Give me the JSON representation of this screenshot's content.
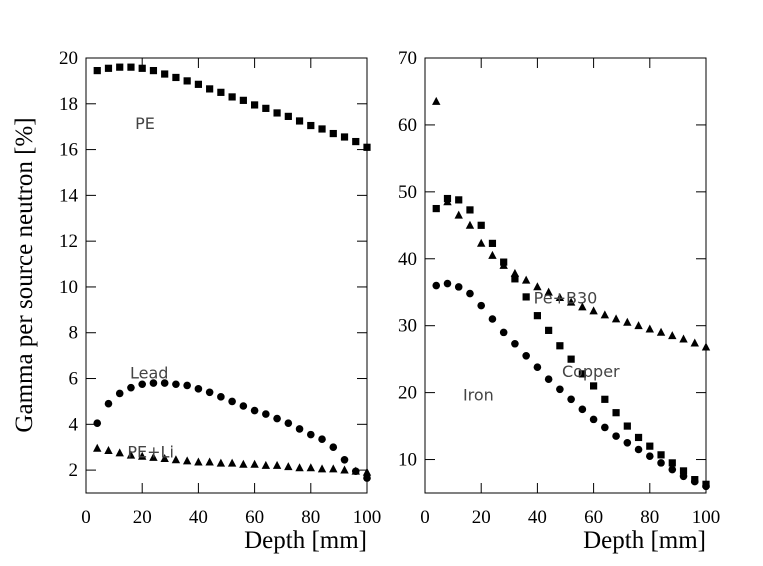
{
  "figure": {
    "ylabel": "Gamma per source neutron [%]"
  },
  "chart_data": [
    {
      "type": "scatter",
      "xlabel": "Depth [mm]",
      "xlim": [
        0,
        100
      ],
      "ylim": [
        1,
        20
      ],
      "xticks": [
        0,
        20,
        40,
        60,
        80,
        100
      ],
      "yticks": [
        2,
        4,
        6,
        8,
        10,
        12,
        14,
        16,
        18,
        20
      ],
      "series": [
        {
          "name": "PE",
          "marker": "square",
          "label_at": [
            21,
            16.9
          ],
          "x": [
            4,
            8,
            12,
            16,
            20,
            24,
            28,
            32,
            36,
            40,
            44,
            48,
            52,
            56,
            60,
            64,
            68,
            72,
            76,
            80,
            84,
            88,
            92,
            96,
            100
          ],
          "y": [
            19.45,
            19.55,
            19.6,
            19.6,
            19.55,
            19.45,
            19.3,
            19.15,
            19.0,
            18.85,
            18.65,
            18.5,
            18.3,
            18.15,
            17.95,
            17.8,
            17.6,
            17.45,
            17.25,
            17.05,
            16.9,
            16.7,
            16.55,
            16.35,
            16.1
          ]
        },
        {
          "name": "Lead",
          "marker": "circle",
          "label_at": [
            22.5,
            6.0
          ],
          "x": [
            4,
            8,
            12,
            16,
            20,
            24,
            28,
            32,
            36,
            40,
            44,
            48,
            52,
            56,
            60,
            64,
            68,
            72,
            76,
            80,
            84,
            88,
            92,
            96,
            100
          ],
          "y": [
            4.05,
            4.9,
            5.35,
            5.6,
            5.75,
            5.8,
            5.8,
            5.75,
            5.7,
            5.55,
            5.4,
            5.2,
            5.0,
            4.8,
            4.6,
            4.45,
            4.25,
            4.05,
            3.8,
            3.55,
            3.35,
            3.0,
            2.45,
            1.95,
            1.65
          ]
        },
        {
          "name": "PE+Li",
          "marker": "triangle",
          "label_at": [
            23,
            2.55
          ],
          "x": [
            4,
            8,
            12,
            16,
            20,
            24,
            28,
            32,
            36,
            40,
            44,
            48,
            52,
            56,
            60,
            64,
            68,
            72,
            76,
            80,
            84,
            88,
            92,
            96,
            100
          ],
          "y": [
            2.95,
            2.85,
            2.75,
            2.65,
            2.6,
            2.55,
            2.5,
            2.45,
            2.4,
            2.35,
            2.35,
            2.3,
            2.3,
            2.25,
            2.25,
            2.2,
            2.2,
            2.15,
            2.1,
            2.1,
            2.05,
            2.05,
            2.0,
            1.95,
            1.9
          ]
        }
      ]
    },
    {
      "type": "scatter",
      "xlabel": "Depth [mm]",
      "xlim": [
        0,
        100
      ],
      "ylim": [
        5,
        70
      ],
      "xticks": [
        0,
        20,
        40,
        60,
        80,
        100
      ],
      "yticks": [
        10,
        20,
        30,
        40,
        50,
        60,
        70
      ],
      "series": [
        {
          "name": "Pe+B30",
          "marker": "triangle",
          "label_at": [
            50,
            33.3
          ],
          "x": [
            4,
            8,
            12,
            16,
            20,
            24,
            28,
            32,
            36,
            40,
            44,
            48,
            52,
            56,
            60,
            64,
            68,
            72,
            76,
            80,
            84,
            88,
            92,
            96,
            100
          ],
          "y": [
            63.5,
            48.5,
            46.5,
            45.0,
            42.3,
            40.5,
            39.0,
            37.8,
            36.8,
            35.8,
            35.0,
            34.2,
            33.5,
            32.8,
            32.2,
            31.6,
            31.0,
            30.5,
            30.0,
            29.5,
            29.0,
            28.5,
            28.0,
            27.4,
            26.8
          ]
        },
        {
          "name": "Copper",
          "marker": "square",
          "label_at": [
            59,
            22.3
          ],
          "x": [
            4,
            8,
            12,
            16,
            20,
            24,
            28,
            32,
            36,
            40,
            44,
            48,
            52,
            56,
            60,
            64,
            68,
            72,
            76,
            80,
            84,
            88,
            92,
            96,
            100
          ],
          "y": [
            47.5,
            49.0,
            48.8,
            47.3,
            45.0,
            42.3,
            39.5,
            37.0,
            34.3,
            31.5,
            29.3,
            27.0,
            25.0,
            22.8,
            21.0,
            19.0,
            17.0,
            15.0,
            13.3,
            12.0,
            10.7,
            9.5,
            8.3,
            7.0,
            6.3
          ]
        },
        {
          "name": "Iron",
          "marker": "circle",
          "label_at": [
            19,
            18.8
          ],
          "x": [
            4,
            8,
            12,
            16,
            20,
            24,
            28,
            32,
            36,
            40,
            44,
            48,
            52,
            56,
            60,
            64,
            68,
            72,
            76,
            80,
            84,
            88,
            92,
            96,
            100
          ],
          "y": [
            36.0,
            36.3,
            35.8,
            34.8,
            33.0,
            31.0,
            29.0,
            27.3,
            25.5,
            23.8,
            22.0,
            20.5,
            19.0,
            17.5,
            16.0,
            14.8,
            13.5,
            12.5,
            11.5,
            10.5,
            9.5,
            8.5,
            7.5,
            6.7,
            6.0
          ]
        }
      ]
    }
  ]
}
